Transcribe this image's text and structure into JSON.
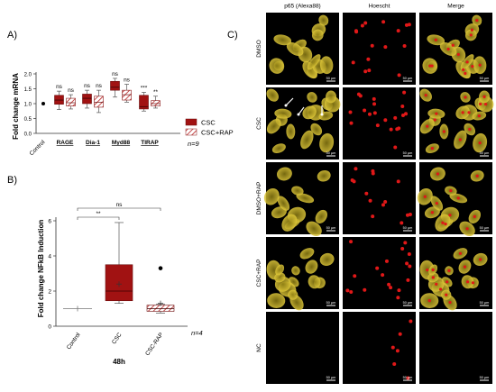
{
  "panel_labels": {
    "a": "A)",
    "b": "B)",
    "c": "C)"
  },
  "colors": {
    "csc": "#a11212",
    "csc_rap_hatch": "#b71c1c",
    "box_edge": "#6a0d0d",
    "axis": "#333333",
    "micro_bg": "#000000",
    "p65": "#c9b22a",
    "nuclei": "#e01818",
    "scale": "#ffffff"
  },
  "chart_data": [
    {
      "type": "box",
      "panel": "A)",
      "ylabel": "Fold change mRNA",
      "ylim": [
        0,
        2.0
      ],
      "yticks": [
        "0.0",
        "0.5",
        "1.0",
        "1.5",
        "2.0"
      ],
      "categories": [
        "Control",
        "RAGE",
        "Dia-1",
        "Myd88",
        "TIRAP"
      ],
      "control_value": 1.0,
      "series": [
        {
          "name": "CSC",
          "boxes": [
            {
              "category": "RAGE",
              "min": 0.8,
              "q1": 0.98,
              "median": 1.12,
              "q3": 1.28,
              "max": 1.42
            },
            {
              "category": "Dia-1",
              "min": 0.85,
              "q1": 1.0,
              "median": 1.18,
              "q3": 1.32,
              "max": 1.45
            },
            {
              "category": "Myd88",
              "min": 1.22,
              "q1": 1.45,
              "median": 1.55,
              "q3": 1.75,
              "max": 1.85
            },
            {
              "category": "TIRAP",
              "min": 0.75,
              "q1": 0.82,
              "median": 0.9,
              "q3": 1.28,
              "max": 1.38
            }
          ]
        },
        {
          "name": "CSC+RAP",
          "boxes": [
            {
              "category": "RAGE",
              "min": 0.82,
              "q1": 0.92,
              "median": 1.03,
              "q3": 1.18,
              "max": 1.3
            },
            {
              "category": "Dia-1",
              "min": 0.7,
              "q1": 0.88,
              "median": 1.05,
              "q3": 1.25,
              "max": 1.45
            },
            {
              "category": "Myd88",
              "min": 1.05,
              "q1": 1.12,
              "median": 1.3,
              "q3": 1.45,
              "max": 1.65
            },
            {
              "category": "TIRAP",
              "min": 0.85,
              "q1": 0.92,
              "median": 1.0,
              "q3": 1.1,
              "max": 1.25
            }
          ]
        }
      ],
      "significance": [
        "ns",
        "ns",
        "ns",
        "ns",
        "ns",
        "ns",
        "***",
        "**",
        "ns",
        "ns"
      ],
      "legend": [
        "CSC",
        "CSC+RAP"
      ],
      "legend_position": "right",
      "n_label": "n=9"
    },
    {
      "type": "box",
      "panel": "B)",
      "ylabel": "Fold change NFkB Induction",
      "xlabel": "48h",
      "ylim": [
        0,
        6
      ],
      "yticks": [
        "0",
        "2",
        "4",
        "6"
      ],
      "categories": [
        "Control",
        "CSC",
        "CSC-RAP"
      ],
      "boxes": [
        {
          "category": "Control",
          "min": 1.0,
          "q1": 1.0,
          "median": 1.0,
          "q3": 1.0,
          "max": 1.0,
          "mean": 1.0
        },
        {
          "category": "CSC",
          "min": 1.3,
          "q1": 1.45,
          "median": 2.0,
          "q3": 3.5,
          "max": 5.9,
          "mean": 2.4
        },
        {
          "category": "CSC-RAP",
          "min": 0.75,
          "q1": 0.85,
          "median": 1.0,
          "q3": 1.2,
          "max": 1.25,
          "mean": 1.3,
          "outlier": 3.3
        }
      ],
      "significance": [
        {
          "from": "Control",
          "to": "CSC",
          "label": "**"
        },
        {
          "from": "Control",
          "to": "CSC-RAP",
          "label": "ns"
        }
      ],
      "n_label": "n=4"
    }
  ],
  "micrographs": {
    "columns": [
      "p65 (Alexa88)",
      "Hoescht",
      "Merge"
    ],
    "rows": [
      "DMSO",
      "CSC",
      "DMSO+RAP",
      "CSC+RAP",
      "NC"
    ],
    "scale_bar": "50 µm"
  }
}
